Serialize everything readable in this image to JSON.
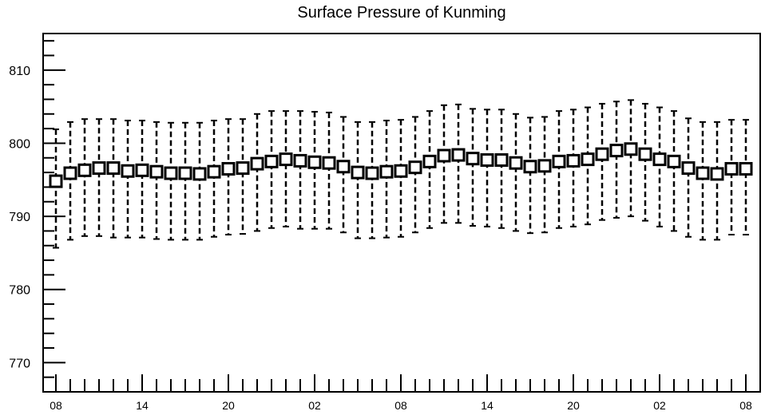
{
  "chart_data": {
    "type": "box",
    "title": "Surface Pressure of Kunming",
    "xlabel": "",
    "ylabel": "",
    "ylim": [
      766,
      815
    ],
    "y_tick_labels": [
      "770",
      "780",
      "790",
      "800",
      "810"
    ],
    "x_tick_labels": [
      "08",
      "14",
      "20",
      "02",
      "08",
      "14",
      "20",
      "02",
      "08"
    ],
    "grid": false,
    "series": [
      {
        "median": [
          794.8,
          795.9,
          796.3,
          796.6,
          796.6,
          796.2,
          796.3,
          796.1,
          795.9,
          795.9,
          795.8,
          796.1,
          796.5,
          796.6,
          797.2,
          797.5,
          797.8,
          797.6,
          797.4,
          797.3,
          796.8,
          796.0,
          795.9,
          796.1,
          796.2,
          796.7,
          797.5,
          798.3,
          798.4,
          797.9,
          797.7,
          797.7,
          797.3,
          796.8,
          796.9,
          797.5,
          797.6,
          797.8,
          798.5,
          799.0,
          799.2,
          798.5,
          797.8,
          797.5,
          796.6,
          795.9,
          795.8,
          796.5,
          796.5
        ],
        "low": [
          785.7,
          786.8,
          787.3,
          787.3,
          787.1,
          787.1,
          787.1,
          786.9,
          786.8,
          786.8,
          786.8,
          787.2,
          787.5,
          787.6,
          788.0,
          788.4,
          788.6,
          788.3,
          788.3,
          788.3,
          787.8,
          787.0,
          787.0,
          787.1,
          787.2,
          787.8,
          788.4,
          789.1,
          789.1,
          788.7,
          788.6,
          788.4,
          788.0,
          787.7,
          787.8,
          788.4,
          788.6,
          788.9,
          789.5,
          789.8,
          790.0,
          789.4,
          788.6,
          788.0,
          787.2,
          786.8,
          786.8,
          787.5,
          787.5
        ],
        "high": [
          801.9,
          802.9,
          803.3,
          803.3,
          803.3,
          803.1,
          803.1,
          802.9,
          802.8,
          802.8,
          802.8,
          803.1,
          803.3,
          803.3,
          804.0,
          804.4,
          804.4,
          804.4,
          804.3,
          804.2,
          803.6,
          802.9,
          802.9,
          803.1,
          803.2,
          803.6,
          804.4,
          805.2,
          805.3,
          804.7,
          804.6,
          804.6,
          804.0,
          803.5,
          803.6,
          804.4,
          804.6,
          804.9,
          805.4,
          805.7,
          805.9,
          805.4,
          804.9,
          804.4,
          803.4,
          802.9,
          802.9,
          803.2,
          803.2
        ]
      }
    ]
  }
}
